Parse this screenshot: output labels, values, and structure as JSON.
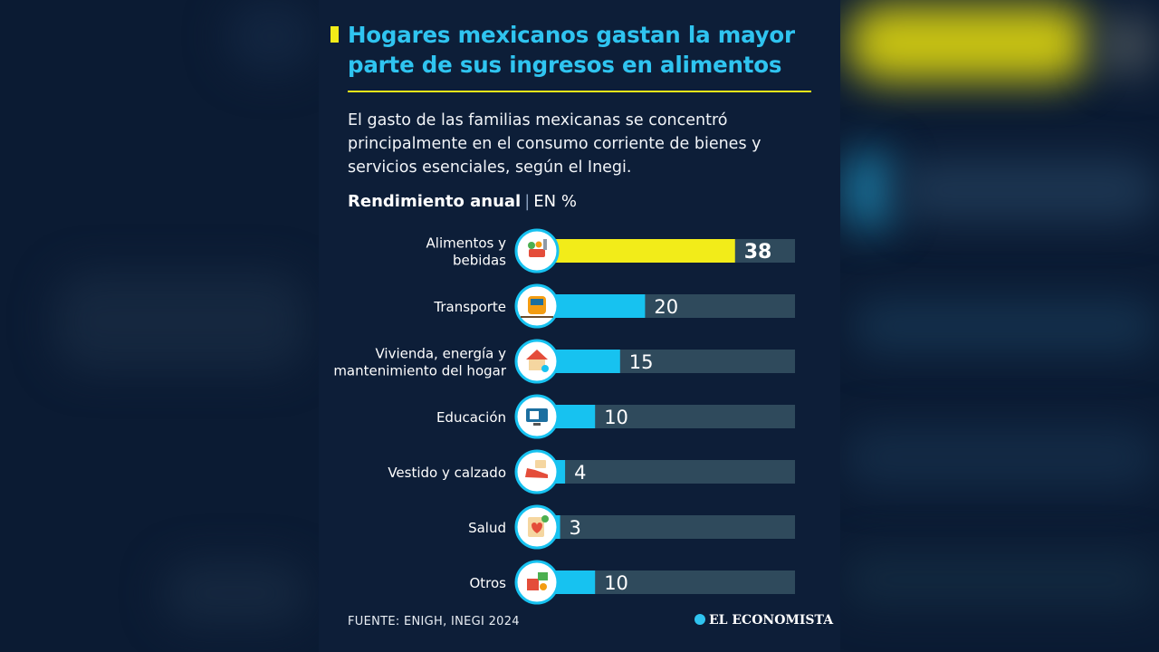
{
  "header": {
    "title": "Hogares mexicanos gastan la mayor parte de sus ingresos en alimentos",
    "subtitle": "El gasto de las familias mexicanas se concentró principalmente en el consumo corriente de bienes y servicios esenciales, según el Inegi."
  },
  "chart_heading": {
    "bold": "Rendimiento anual",
    "separator": "|",
    "unit": "EN %"
  },
  "chart_data": {
    "type": "bar",
    "orientation": "horizontal",
    "categories": [
      "Alimentos y\nbebidas",
      "Transporte",
      "Vivienda, energía y\nmantenimiento del hogar",
      "Educación",
      "Vestido y calzado",
      "Salud",
      "Otros"
    ],
    "values": [
      38,
      20,
      15,
      10,
      4,
      3,
      10
    ],
    "xlim": [
      0,
      50
    ],
    "icons": [
      "food-icon",
      "train-icon",
      "house-tools-icon",
      "education-icon",
      "shoe-icon",
      "health-icon",
      "other-items-icon"
    ],
    "highlight_index": 0,
    "colors": {
      "highlight": "#f2ec19",
      "bar": "#17c2f0",
      "track": "#2f4a5c",
      "icon_ring": "#17c2f0",
      "icon_fill": "#ffffff"
    },
    "grid": false,
    "legend": "none"
  },
  "footer": {
    "source": "FUENTE: ENIGH, INEGI 2024",
    "brand": "EL ECONOMISTA"
  }
}
